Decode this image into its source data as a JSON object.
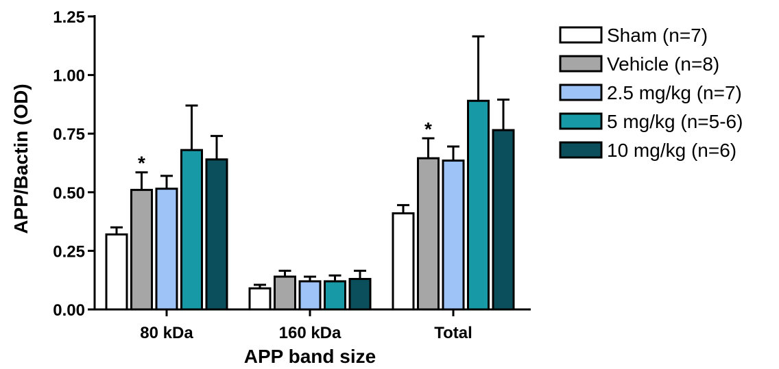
{
  "chart_data": {
    "type": "bar",
    "title": "",
    "xlabel": "APP band size",
    "ylabel": "APP/Bactin (OD)",
    "ylim": [
      0,
      1.25
    ],
    "yticks": [
      "0.00",
      "0.25",
      "0.50",
      "0.75",
      "1.00",
      "1.25"
    ],
    "categories": [
      "80 kDa",
      "160 kDa",
      "Total"
    ],
    "legend_position": "top-right",
    "grid": false,
    "series": [
      {
        "name": "Sham (n=7)",
        "color": "#ffffff",
        "values": [
          0.32,
          0.09,
          0.41
        ],
        "errors": [
          0.03,
          0.015,
          0.035
        ]
      },
      {
        "name": "Vehicle (n=8)",
        "color": "#a6a6a6",
        "values": [
          0.51,
          0.14,
          0.645
        ],
        "errors": [
          0.075,
          0.025,
          0.085
        ]
      },
      {
        "name": "2.5 mg/kg (n=7)",
        "color": "#9dc3f7",
        "values": [
          0.515,
          0.12,
          0.635
        ],
        "errors": [
          0.055,
          0.02,
          0.06
        ]
      },
      {
        "name": "5 mg/kg (n=5-6)",
        "color": "#1799a6",
        "values": [
          0.68,
          0.12,
          0.89
        ],
        "errors": [
          0.19,
          0.025,
          0.275
        ]
      },
      {
        "name": "10 mg/kg (n=6)",
        "color": "#0b4f5c",
        "values": [
          0.64,
          0.13,
          0.765
        ],
        "errors": [
          0.1,
          0.035,
          0.13
        ]
      }
    ],
    "annotations": [
      {
        "text": "*",
        "category": 0,
        "series": 1
      },
      {
        "text": "*",
        "category": 2,
        "series": 1
      }
    ]
  }
}
